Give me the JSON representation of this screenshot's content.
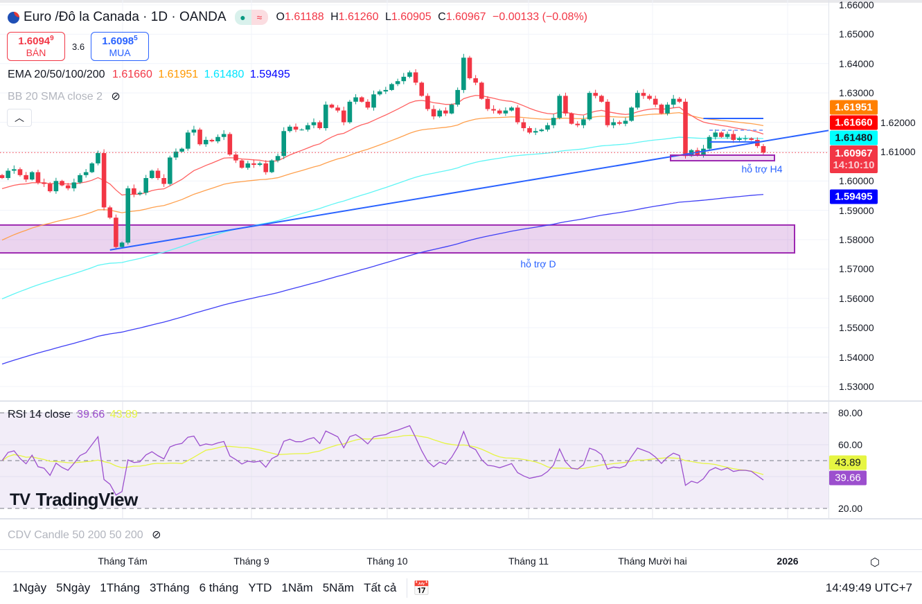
{
  "header": {
    "title": "Euro /Đô la Canada · 1D · OANDA",
    "status_icons": [
      "market-open-dot",
      "wave-icon"
    ],
    "ohlc": {
      "o_label": "O",
      "o": "1.61188",
      "h_label": "H",
      "h": "1.61260",
      "l_label": "L",
      "l": "1.60905",
      "c_label": "C",
      "c": "1.60967",
      "change": "−0.00133 (−0.08%)"
    }
  },
  "quote": {
    "sell_price": "1.6094",
    "sell_sup": "9",
    "sell_label": "BÁN",
    "spread": "3.6",
    "buy_price": "1.6098",
    "buy_sup": "5",
    "buy_label": "MUA"
  },
  "indicators": {
    "ema_label": "EMA 20/50/100/200",
    "ema20": "1.61660",
    "ema50": "1.61951",
    "ema100": "1.61480",
    "ema200": "1.59495",
    "bb_label": "BB 20 SMA close 2",
    "rsi_label": "RSI 14 close",
    "rsi": "39.66",
    "rsi_ma": "43.89",
    "cdv_label": "CDV Candle 50 200 50 200"
  },
  "colors": {
    "up": "#089981",
    "down": "#f23645",
    "ema20": "#ff0000",
    "ema50": "#ff7f00",
    "ema100": "#00ffff",
    "ema200": "#0000ff",
    "trend": "#2962ff",
    "zone": "#9c27b0",
    "rsi": "#9c4fce",
    "rsi_ma": "#e6f542"
  },
  "price_axis": {
    "ticks": [
      "1.66000",
      "1.65000",
      "1.64000",
      "1.63000",
      "1.62000",
      "1.61000",
      "1.60000",
      "1.59000",
      "1.58000",
      "1.57000",
      "1.56000",
      "1.55000",
      "1.54000",
      "1.53000"
    ],
    "badges": [
      {
        "value": "1.61951",
        "color": "#ff7f00",
        "text_color": "#ffffff"
      },
      {
        "value": "1.61660",
        "color": "#ff0000",
        "text_color": "#ffffff"
      },
      {
        "value": "1.61480",
        "color": "#00ffff",
        "text_color": "#131722"
      },
      {
        "value": "1.60967",
        "sub": "14:10:10",
        "color": "#f23645",
        "text_color": "#ffffff"
      },
      {
        "value": "1.59495",
        "color": "#0000ff",
        "text_color": "#ffffff"
      }
    ]
  },
  "rsi_axis": {
    "ticks": [
      "80.00",
      "60.00",
      "20.00"
    ],
    "ma_badge": "43.89",
    "rsi_badge": "39.66"
  },
  "time_axis": {
    "labels": [
      "Tháng Tám",
      "Tháng 9",
      "Tháng 10",
      "Tháng 11",
      "Tháng Mười hai",
      "2026"
    ]
  },
  "annotations": {
    "support_daily": "hỗ trợ D",
    "support_h4": "hỗ trợ H4"
  },
  "watermark": "TradingView",
  "toolbar": {
    "ranges": [
      "1Ngày",
      "5Ngày",
      "1Tháng",
      "3Tháng",
      "6 tháng",
      "YTD",
      "1Năm",
      "5Năm",
      "Tất cả"
    ],
    "clock": "14:49:49 UTC+7"
  },
  "chart_data": {
    "type": "candlestick",
    "title": "Euro /Đô la Canada · 1D · OANDA",
    "ylim": [
      1.525,
      1.662
    ],
    "rsi_ylim": [
      0,
      100
    ],
    "ema_seeds": {
      "ema20": 1.597,
      "ema50": 1.579,
      "ema100": 1.559,
      "ema200": 1.537
    },
    "last_candle": {
      "o": 1.61188,
      "h": 1.6126,
      "l": 1.60905,
      "c": 1.60967
    },
    "closes": [
      1.601,
      1.6035,
      1.604,
      1.602,
      1.6005,
      1.603,
      1.5995,
      1.599,
      1.5965,
      1.6,
      1.5985,
      1.5975,
      1.5995,
      1.602,
      1.603,
      1.606,
      1.6095,
      1.591,
      1.5875,
      1.5775,
      1.579,
      1.5975,
      1.5955,
      1.596,
      1.601,
      1.6035,
      1.601,
      1.599,
      1.608,
      1.61,
      1.611,
      1.6165,
      1.6175,
      1.6125,
      1.614,
      1.6135,
      1.615,
      1.616,
      1.609,
      1.607,
      1.6045,
      1.606,
      1.6055,
      1.606,
      1.603,
      1.607,
      1.6085,
      1.617,
      1.6185,
      1.6175,
      1.6175,
      1.619,
      1.62,
      1.618,
      1.626,
      1.625,
      1.624,
      1.62,
      1.627,
      1.6285,
      1.627,
      1.625,
      1.6295,
      1.6305,
      1.631,
      1.633,
      1.634,
      1.6355,
      1.637,
      1.6335,
      1.629,
      1.6245,
      1.622,
      1.624,
      1.623,
      1.626,
      1.631,
      1.642,
      1.635,
      1.6335,
      1.628,
      1.6245,
      1.624,
      1.623,
      1.624,
      1.625,
      1.62,
      1.618,
      1.6165,
      1.617,
      1.6175,
      1.619,
      1.6215,
      1.629,
      1.623,
      1.6195,
      1.619,
      1.621,
      1.63,
      1.629,
      1.627,
      1.619,
      1.62,
      1.6195,
      1.6205,
      1.625,
      1.63,
      1.629,
      1.628,
      1.626,
      1.623,
      1.626,
      1.628,
      1.627,
      1.6085,
      1.6105,
      1.609,
      1.611,
      1.615,
      1.6165,
      1.615,
      1.616,
      1.614,
      1.6145,
      1.6145,
      1.614,
      1.6119,
      1.60967
    ],
    "support_zone_daily": [
      1.5755,
      1.585
    ],
    "support_zone_h4": [
      1.6069,
      1.6088
    ],
    "trendline": {
      "start_index": 18,
      "start_price": 1.5765,
      "end_price_at_axis": 1.6172
    },
    "h_lines": [
      {
        "price": 1.6213,
        "from": 117,
        "to": 127
      },
      {
        "price": 1.6133,
        "from": 118,
        "to": 126
      },
      {
        "price": 1.6173,
        "from": 118,
        "to": 127,
        "dashed": true
      }
    ],
    "current_price": 1.60967
  }
}
